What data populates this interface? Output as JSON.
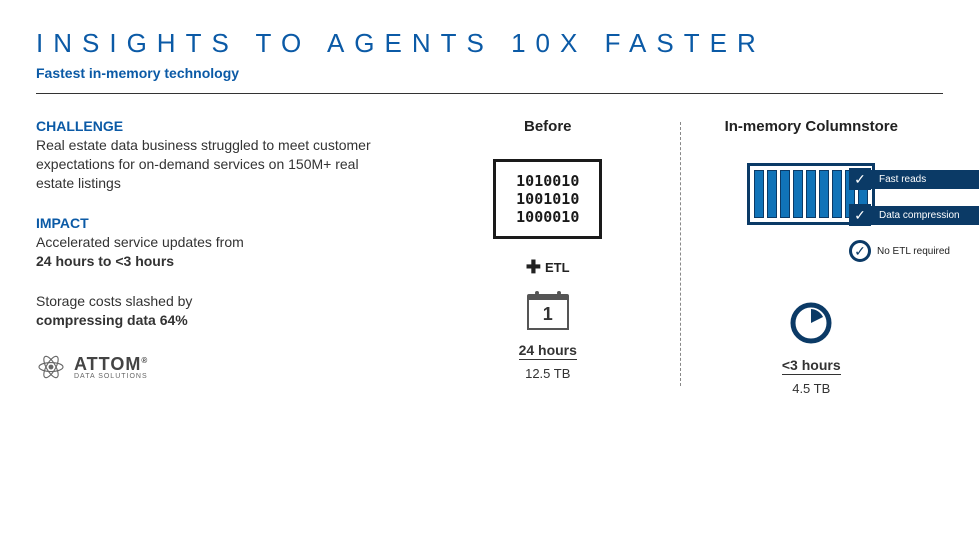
{
  "colors": {
    "primary_blue": "#0b5aa6",
    "dark_navy": "#0b3a66",
    "bar_blue": "#1073b8",
    "text": "#333333",
    "border_dark": "#1a1a1a"
  },
  "header": {
    "title": "INSIGHTS TO AGENTS 10X FASTER",
    "subtitle": "Fastest in-memory technology"
  },
  "challenge": {
    "heading": "CHALLENGE",
    "body": "Real estate data business struggled to meet customer expectations for on-demand services on 150M+ real estate listings"
  },
  "impact": {
    "heading": "IMPACT",
    "line1_pre": "Accelerated service updates from",
    "line1_bold": "24 hours to <3 hours",
    "line2_pre": "Storage costs slashed by",
    "line2_bold": "compressing data 64%"
  },
  "logo": {
    "main": "ATTOM",
    "sub": "DATA SOLUTIONS",
    "trademark": "®"
  },
  "comparison": {
    "before": {
      "title": "Before",
      "binary": [
        "1010010",
        "1001010",
        "1000010"
      ],
      "etl_label": "ETL",
      "calendar_day": "1",
      "time": "24 hours",
      "size": "12.5 TB"
    },
    "after": {
      "title": "In-memory Columnstore",
      "bar_count": 9,
      "badges": [
        {
          "style": "square",
          "label": "Fast reads"
        },
        {
          "style": "square",
          "label": "Data compression"
        },
        {
          "style": "circle",
          "label": "No ETL required"
        }
      ],
      "time": "<3 hours",
      "size": "4.5 TB"
    }
  }
}
